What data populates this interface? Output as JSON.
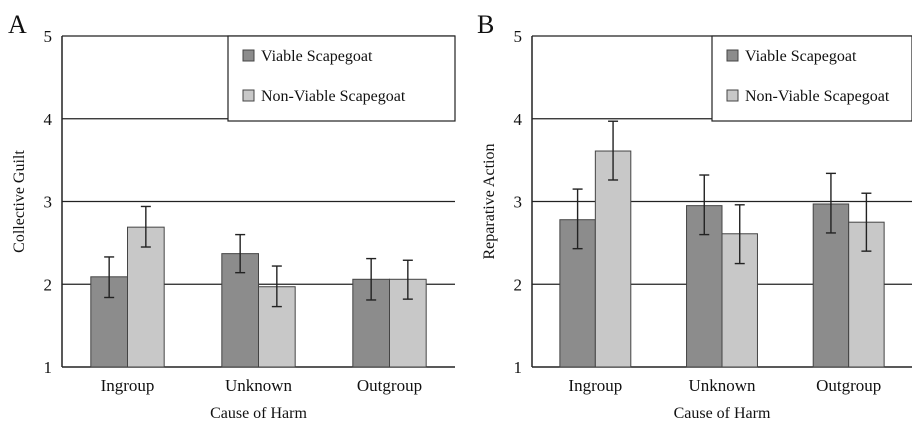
{
  "chart_data": [
    {
      "type": "bar",
      "panel_label": "A",
      "categories": [
        "Ingroup",
        "Unknown",
        "Outgroup"
      ],
      "series": [
        {
          "name": "Viable Scapegoat",
          "color": "#8c8c8c",
          "values": [
            2.09,
            2.37,
            2.06
          ],
          "error": [
            [
              1.84,
              2.33
            ],
            [
              2.14,
              2.6
            ],
            [
              1.81,
              2.31
            ]
          ]
        },
        {
          "name": "Non-Viable Scapegoat",
          "color": "#c8c8c8",
          "values": [
            2.69,
            1.97,
            2.06
          ],
          "error": [
            [
              2.45,
              2.94
            ],
            [
              1.73,
              2.22
            ],
            [
              1.82,
              2.29
            ]
          ]
        }
      ],
      "xlabel": "Cause of Harm",
      "ylabel": "Collective Guilt",
      "ylim": [
        1,
        5
      ],
      "yticks": [
        "1",
        "2",
        "3",
        "4",
        "5"
      ],
      "grid": true,
      "legend": "top-right"
    },
    {
      "type": "bar",
      "panel_label": "B",
      "categories": [
        "Ingroup",
        "Unknown",
        "Outgroup"
      ],
      "series": [
        {
          "name": "Viable Scapegoat",
          "color": "#8c8c8c",
          "values": [
            2.78,
            2.95,
            2.97
          ],
          "error": [
            [
              2.43,
              3.15
            ],
            [
              2.6,
              3.32
            ],
            [
              2.62,
              3.34
            ]
          ]
        },
        {
          "name": "Non-Viable Scapegoat",
          "color": "#c8c8c8",
          "values": [
            3.61,
            2.61,
            2.75
          ],
          "error": [
            [
              3.26,
              3.97
            ],
            [
              2.25,
              2.96
            ],
            [
              2.4,
              3.1
            ]
          ]
        }
      ],
      "xlabel": "Cause of Harm",
      "ylabel": "Reparative Action",
      "ylim": [
        1,
        5
      ],
      "yticks": [
        "1",
        "2",
        "3",
        "4",
        "5"
      ],
      "grid": true,
      "legend": "top-right"
    }
  ]
}
